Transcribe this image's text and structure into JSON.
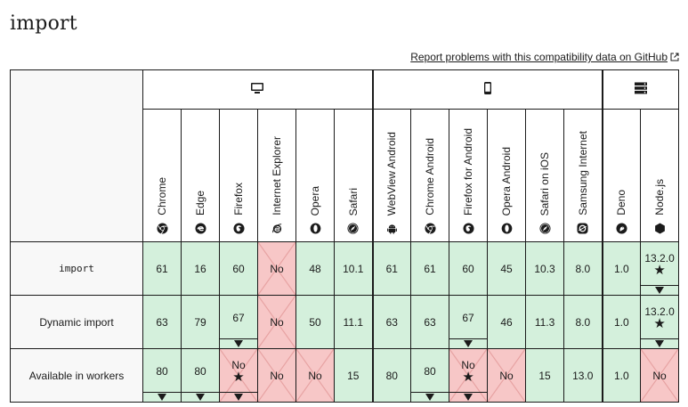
{
  "page": {
    "title": "import",
    "report_link": "Report problems with this compatibility data on GitHub"
  },
  "platforms": [
    {
      "name": "desktop",
      "icon": "desktop-icon",
      "span": 6
    },
    {
      "name": "mobile",
      "icon": "mobile-icon",
      "span": 6
    },
    {
      "name": "server",
      "icon": "server-icon",
      "span": 2
    }
  ],
  "browsers": [
    {
      "name": "Chrome",
      "icon": "chrome-icon"
    },
    {
      "name": "Edge",
      "icon": "edge-icon"
    },
    {
      "name": "Firefox",
      "icon": "firefox-icon"
    },
    {
      "name": "Internet Explorer",
      "icon": "ie-icon"
    },
    {
      "name": "Opera",
      "icon": "opera-icon"
    },
    {
      "name": "Safari",
      "icon": "safari-icon"
    },
    {
      "name": "WebView Android",
      "icon": "android-icon"
    },
    {
      "name": "Chrome Android",
      "icon": "chrome-icon"
    },
    {
      "name": "Firefox for Android",
      "icon": "firefox-icon"
    },
    {
      "name": "Opera Android",
      "icon": "opera-icon"
    },
    {
      "name": "Safari on iOS",
      "icon": "safari-icon"
    },
    {
      "name": "Samsung Internet",
      "icon": "samsung-icon"
    },
    {
      "name": "Deno",
      "icon": "deno-icon"
    },
    {
      "name": "Node.js",
      "icon": "nodejs-icon"
    }
  ],
  "rows": [
    {
      "feature": "import",
      "code": true,
      "cells": [
        {
          "v": "61",
          "s": "yes"
        },
        {
          "v": "16",
          "s": "yes"
        },
        {
          "v": "60",
          "s": "yes"
        },
        {
          "v": "No",
          "s": "no"
        },
        {
          "v": "48",
          "s": "yes"
        },
        {
          "v": "10.1",
          "s": "yes"
        },
        {
          "v": "61",
          "s": "yes"
        },
        {
          "v": "61",
          "s": "yes"
        },
        {
          "v": "60",
          "s": "yes"
        },
        {
          "v": "45",
          "s": "yes"
        },
        {
          "v": "10.3",
          "s": "yes"
        },
        {
          "v": "8.0",
          "s": "yes"
        },
        {
          "v": "1.0",
          "s": "yes"
        },
        {
          "v": "13.2.0",
          "s": "yes",
          "star": true,
          "tri": true
        }
      ]
    },
    {
      "feature": "Dynamic import",
      "code": false,
      "cells": [
        {
          "v": "63",
          "s": "yes"
        },
        {
          "v": "79",
          "s": "yes"
        },
        {
          "v": "67",
          "s": "yes",
          "tri": true
        },
        {
          "v": "No",
          "s": "no"
        },
        {
          "v": "50",
          "s": "yes"
        },
        {
          "v": "11.1",
          "s": "yes"
        },
        {
          "v": "63",
          "s": "yes"
        },
        {
          "v": "63",
          "s": "yes"
        },
        {
          "v": "67",
          "s": "yes",
          "tri": true
        },
        {
          "v": "46",
          "s": "yes"
        },
        {
          "v": "11.3",
          "s": "yes"
        },
        {
          "v": "8.0",
          "s": "yes"
        },
        {
          "v": "1.0",
          "s": "yes"
        },
        {
          "v": "13.2.0",
          "s": "yes",
          "star": true,
          "tri": true
        }
      ]
    },
    {
      "feature": "Available in workers",
      "code": false,
      "cells": [
        {
          "v": "80",
          "s": "yes",
          "tri": true
        },
        {
          "v": "80",
          "s": "yes",
          "tri": true
        },
        {
          "v": "No",
          "s": "no",
          "star": true,
          "tri": true
        },
        {
          "v": "No",
          "s": "no"
        },
        {
          "v": "No",
          "s": "no"
        },
        {
          "v": "15",
          "s": "yes"
        },
        {
          "v": "80",
          "s": "yes"
        },
        {
          "v": "80",
          "s": "yes",
          "tri": true
        },
        {
          "v": "No",
          "s": "no",
          "star": true,
          "tri": true
        },
        {
          "v": "No",
          "s": "no"
        },
        {
          "v": "15",
          "s": "yes"
        },
        {
          "v": "13.0",
          "s": "yes"
        },
        {
          "v": "1.0",
          "s": "yes"
        },
        {
          "v": "No",
          "s": "no"
        }
      ]
    }
  ]
}
